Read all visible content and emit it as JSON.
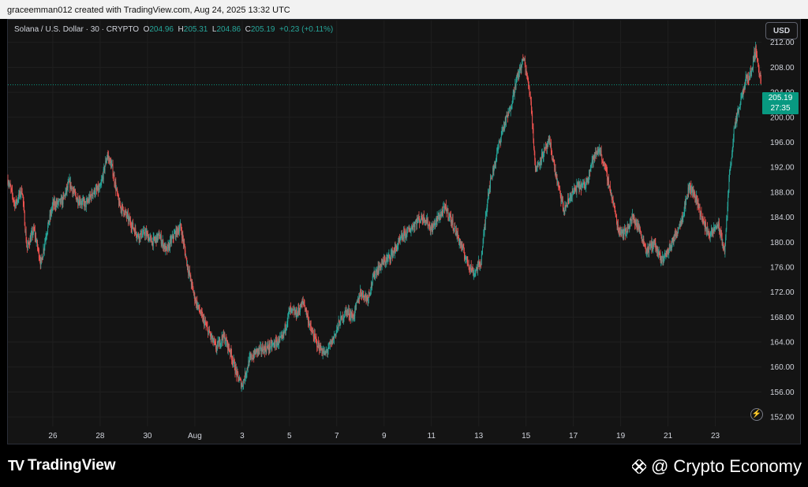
{
  "header": {
    "attribution": "graceemman012 created with TradingView.com, Aug 24, 2025 13:32 UTC"
  },
  "legend": {
    "symbol": "Solana / U.S. Dollar · 30 · CRYPTO",
    "o_label": "O",
    "o_value": "204.96",
    "h_label": "H",
    "h_value": "205.31",
    "l_label": "L",
    "l_value": "204.86",
    "c_label": "C",
    "c_value": "205.19",
    "change": "+0.23 (+0.11%)"
  },
  "currency_button": "USD",
  "price_tag": {
    "price": "205.19",
    "countdown": "27:35"
  },
  "footer": {
    "brand": "TradingView",
    "watermark": "@ Crypto Economy"
  },
  "colors": {
    "up": "#26a69a",
    "down": "#ef5350",
    "background": "#141414",
    "grid": "#1f1f1f",
    "last_price": "#089981"
  },
  "chart_data": {
    "type": "candlestick",
    "interval": "30",
    "y_ticks": [
      "212.00",
      "208.00",
      "204.00",
      "200.00",
      "196.00",
      "192.00",
      "188.00",
      "184.00",
      "180.00",
      "176.00",
      "172.00",
      "168.00",
      "164.00",
      "160.00",
      "156.00",
      "152.00"
    ],
    "ylim": [
      150.5,
      215.5
    ],
    "x_ticks": [
      "26",
      "28",
      "30",
      "Aug",
      "3",
      "5",
      "7",
      "9",
      "11",
      "13",
      "15",
      "17",
      "19",
      "21",
      "23"
    ],
    "x_tick_days": [
      -6,
      -4,
      -2,
      0,
      2,
      4,
      6,
      8,
      10,
      12,
      14,
      16,
      18,
      20,
      22
    ],
    "xlim": [
      -7.9,
      23.95
    ],
    "last_price": 205.19,
    "price_path": [
      [
        -7.9,
        190
      ],
      [
        -7.6,
        186
      ],
      [
        -7.3,
        188.5
      ],
      [
        -7.1,
        179
      ],
      [
        -6.8,
        182
      ],
      [
        -6.5,
        176.5
      ],
      [
        -6.3,
        181
      ],
      [
        -6.0,
        186
      ],
      [
        -5.6,
        186.5
      ],
      [
        -5.3,
        189.5
      ],
      [
        -5.0,
        187
      ],
      [
        -4.6,
        186
      ],
      [
        -4.3,
        188
      ],
      [
        -4.0,
        188.5
      ],
      [
        -3.7,
        194
      ],
      [
        -3.5,
        192
      ],
      [
        -3.2,
        186
      ],
      [
        -3.0,
        185
      ],
      [
        -2.7,
        183
      ],
      [
        -2.4,
        181
      ],
      [
        -2.1,
        181.5
      ],
      [
        -1.8,
        180
      ],
      [
        -1.5,
        181
      ],
      [
        -1.2,
        178.5
      ],
      [
        -0.9,
        181
      ],
      [
        -0.6,
        182.5
      ],
      [
        -0.3,
        176
      ],
      [
        0.0,
        171
      ],
      [
        0.3,
        168
      ],
      [
        0.6,
        165.5
      ],
      [
        0.9,
        163
      ],
      [
        1.2,
        165
      ],
      [
        1.5,
        162.5
      ],
      [
        1.8,
        158.5
      ],
      [
        2.0,
        157
      ],
      [
        2.3,
        161
      ],
      [
        2.6,
        162.5
      ],
      [
        3.0,
        163
      ],
      [
        3.3,
        163.5
      ],
      [
        3.7,
        164.5
      ],
      [
        4.0,
        169
      ],
      [
        4.3,
        168.5
      ],
      [
        4.6,
        170.5
      ],
      [
        4.9,
        166
      ],
      [
        5.2,
        163.5
      ],
      [
        5.5,
        162
      ],
      [
        5.8,
        164
      ],
      [
        6.1,
        167
      ],
      [
        6.4,
        169
      ],
      [
        6.7,
        168
      ],
      [
        7.0,
        172
      ],
      [
        7.3,
        171
      ],
      [
        7.6,
        175
      ],
      [
        7.9,
        176.5
      ],
      [
        8.2,
        177.5
      ],
      [
        8.5,
        179
      ],
      [
        8.8,
        181
      ],
      [
        9.1,
        182
      ],
      [
        9.4,
        183.5
      ],
      [
        9.7,
        184
      ],
      [
        10.0,
        182
      ],
      [
        10.3,
        184
      ],
      [
        10.6,
        185.5
      ],
      [
        10.9,
        183
      ],
      [
        11.2,
        180
      ],
      [
        11.5,
        177
      ],
      [
        11.8,
        175
      ],
      [
        12.1,
        177
      ],
      [
        12.4,
        188
      ],
      [
        12.7,
        193
      ],
      [
        13.0,
        198
      ],
      [
        13.3,
        201
      ],
      [
        13.6,
        206
      ],
      [
        13.9,
        209.5
      ],
      [
        14.2,
        203
      ],
      [
        14.4,
        191.5
      ],
      [
        14.7,
        194
      ],
      [
        15.0,
        196
      ],
      [
        15.3,
        190
      ],
      [
        15.6,
        185
      ],
      [
        15.9,
        187.5
      ],
      [
        16.2,
        189
      ],
      [
        16.5,
        189
      ],
      [
        16.8,
        193
      ],
      [
        17.1,
        195
      ],
      [
        17.4,
        191
      ],
      [
        17.7,
        186
      ],
      [
        17.9,
        182
      ],
      [
        18.2,
        181.5
      ],
      [
        18.5,
        184
      ],
      [
        18.8,
        182
      ],
      [
        19.1,
        178.5
      ],
      [
        19.4,
        180
      ],
      [
        19.7,
        177
      ],
      [
        20.0,
        178.5
      ],
      [
        20.3,
        181
      ],
      [
        20.6,
        184
      ],
      [
        20.9,
        189
      ],
      [
        21.2,
        187
      ],
      [
        21.5,
        183
      ],
      [
        21.8,
        181
      ],
      [
        22.1,
        183
      ],
      [
        22.4,
        178.5
      ],
      [
        22.6,
        191
      ],
      [
        22.8,
        198
      ],
      [
        23.1,
        203
      ],
      [
        23.3,
        206
      ],
      [
        23.5,
        207
      ],
      [
        23.7,
        211
      ],
      [
        23.95,
        205.2
      ]
    ]
  }
}
